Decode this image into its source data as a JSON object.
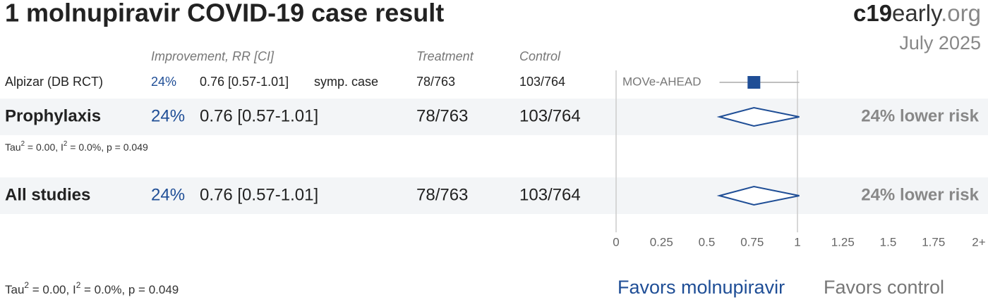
{
  "chart_data": {
    "type": "forest",
    "title": "1 molnupiravir COVID-19 case result",
    "brand": [
      "c19",
      "early",
      ".org"
    ],
    "date": "July 2025",
    "columns": [
      "Improvement, RR [CI]",
      "Treatment",
      "Control"
    ],
    "xlim": [
      0,
      2
    ],
    "xticks": [
      0,
      0.25,
      0.5,
      0.75,
      1,
      1.25,
      1.5,
      1.75,
      {
        "value": 2,
        "label": "2+"
      }
    ],
    "color": "#1f4e96",
    "rows": [
      {
        "kind": "study",
        "label": "Alpizar (DB RCT)",
        "improvement": "24%",
        "rr": "0.76 [0.57-1.01]",
        "outcome": "symp. case",
        "treatment": "78/763",
        "control": "103/764",
        "study": "MOVe-AHEAD",
        "estimate": 0.76,
        "ci": [
          0.57,
          1.01
        ]
      },
      {
        "kind": "summary",
        "label": "Prophylaxis",
        "improvement": "24%",
        "rr": "0.76 [0.57-1.01]",
        "treatment": "78/763",
        "control": "103/764",
        "estimate": 0.76,
        "ci": [
          0.57,
          1.01
        ],
        "result": "24% lower risk",
        "heterogeneity": [
          "Tau",
          "2",
          " = 0.00, I",
          "2",
          " = 0.0%, p = 0.049"
        ]
      },
      {
        "kind": "summary",
        "label": "All studies",
        "improvement": "24%",
        "rr": "0.76 [0.57-1.01]",
        "treatment": "78/763",
        "control": "103/764",
        "estimate": 0.76,
        "ci": [
          0.57,
          1.01
        ],
        "result": "24% lower risk"
      }
    ],
    "heterogeneity": [
      "Tau",
      "2",
      " = 0.00, I",
      "2",
      " = 0.0%, p = 0.049"
    ],
    "favors": [
      "Favors molnupiravir",
      "Favors control"
    ]
  }
}
